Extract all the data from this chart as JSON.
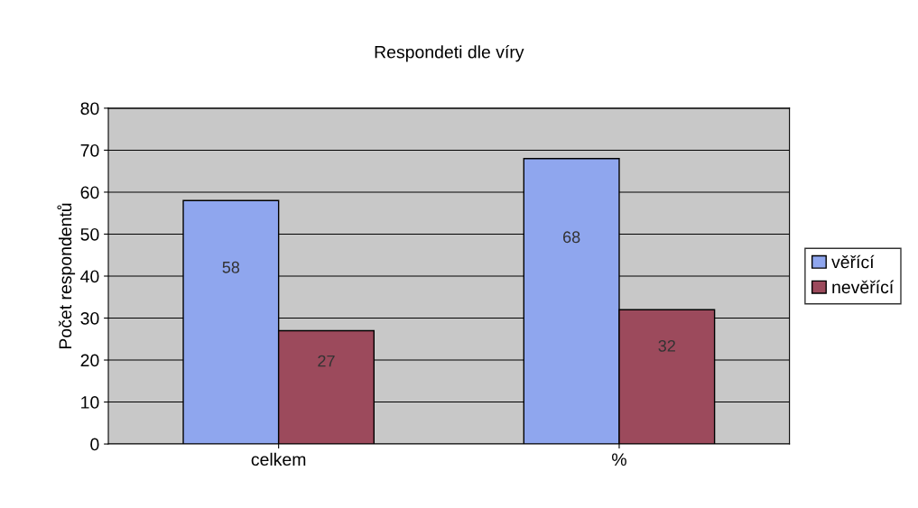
{
  "chart_data": {
    "type": "bar",
    "title": "Respondeti dle víry",
    "ylabel": "Počet respondentů",
    "categories": [
      "celkem",
      "%"
    ],
    "series": [
      {
        "name": "věřící",
        "color": "#8fa6ee",
        "values": [
          58,
          68
        ]
      },
      {
        "name": "nevěřící",
        "color": "#9c4a5c",
        "values": [
          27,
          32
        ]
      }
    ],
    "ylim": [
      0,
      80
    ],
    "yticks": [
      0,
      10,
      20,
      30,
      40,
      50,
      60,
      70,
      80
    ],
    "grid": "y",
    "legend": "right",
    "data_labels": true
  }
}
